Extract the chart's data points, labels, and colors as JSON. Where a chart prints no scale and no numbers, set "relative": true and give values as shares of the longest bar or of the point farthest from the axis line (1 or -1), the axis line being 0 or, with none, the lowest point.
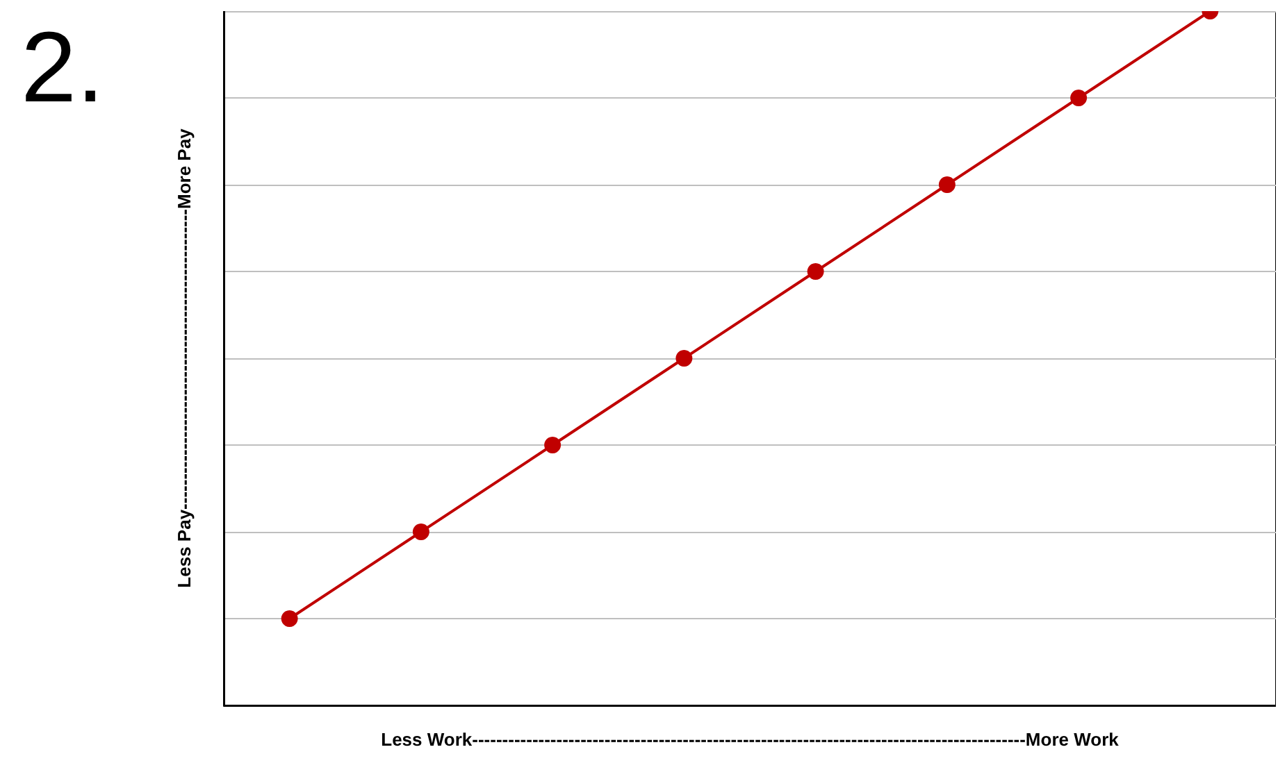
{
  "chart_data": {
    "type": "line",
    "title": "2.",
    "xlabel": "Less Work--------------------------------------------------------------------------------------------More Work",
    "ylabel": "Less Pay--------------------------------------------------More Pay",
    "categories": [
      null,
      null,
      null,
      null,
      null,
      null,
      null,
      null
    ],
    "values": [
      0.125,
      0.25,
      0.375,
      0.5,
      0.625,
      0.75,
      0.875,
      1
    ],
    "color": "#c00000",
    "relative": true,
    "grid": "y",
    "marker": "circle",
    "line_style": "solid"
  }
}
